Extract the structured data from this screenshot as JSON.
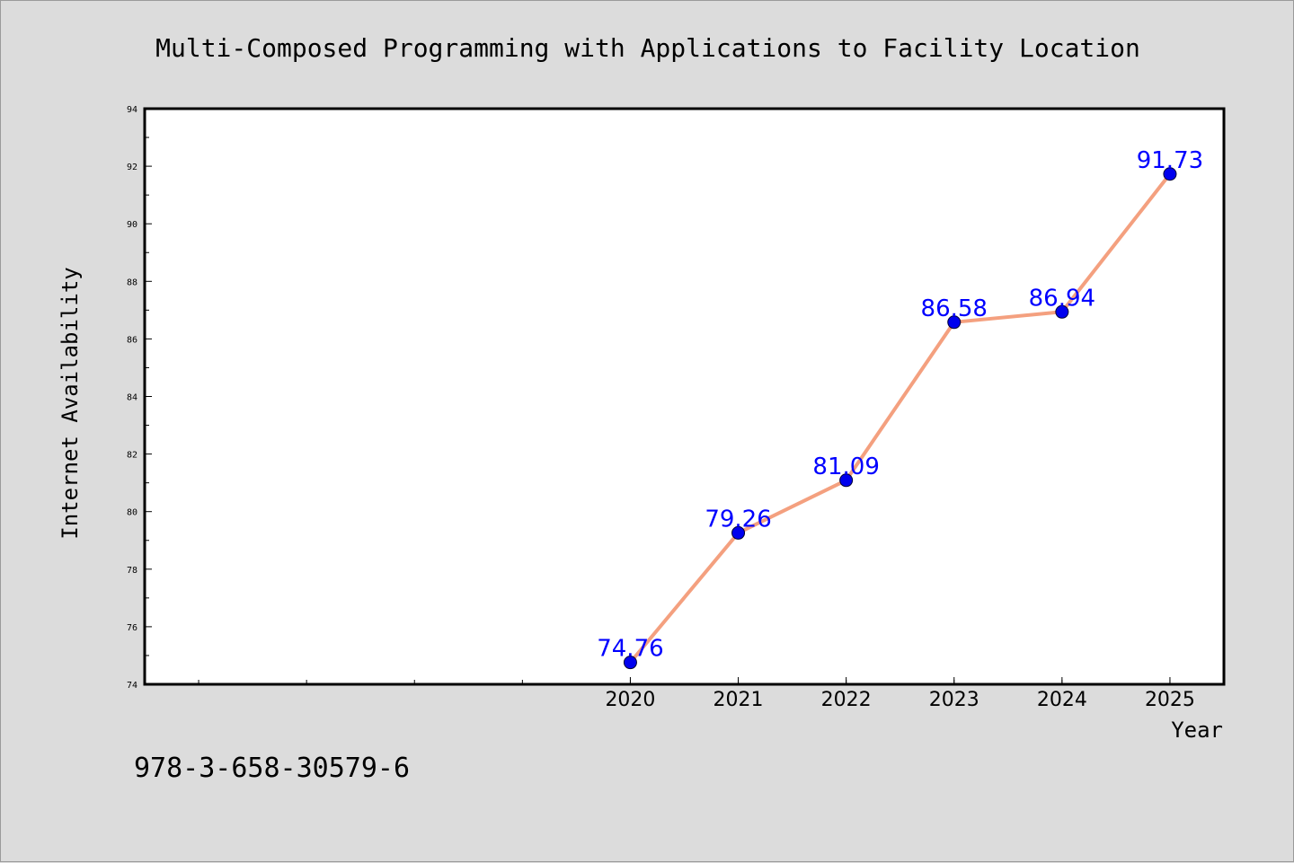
{
  "chart_data": {
    "type": "line",
    "title": "Multi-Composed Programming with Applications to Facility Location",
    "xlabel": "Year",
    "ylabel": "Internet Availability",
    "x": [
      "2020",
      "2021",
      "2022",
      "2023",
      "2024",
      "2025"
    ],
    "x_positions": [
      2020,
      2021,
      2022,
      2023,
      2024,
      2025
    ],
    "xlim": [
      2015.5,
      2025.5
    ],
    "values": [
      74.76,
      79.26,
      81.09,
      86.58,
      86.94,
      91.73
    ],
    "data_labels": [
      "74.76",
      "79.26",
      "81.09",
      "86.58",
      "86.94",
      "91.73"
    ],
    "ylim": [
      74,
      94
    ],
    "yticks": [
      "74",
      "76",
      "78",
      "80",
      "82",
      "84",
      "86",
      "88",
      "90",
      "92",
      "94"
    ],
    "grid": false,
    "legend": "none",
    "line_color": "#f4a07f",
    "marker_color": "#0000ee",
    "label_color": "#0000ff",
    "plot_background": "#ffffff",
    "figure_background": "#dcdcdc"
  },
  "caption": "978-3-658-30579-6"
}
